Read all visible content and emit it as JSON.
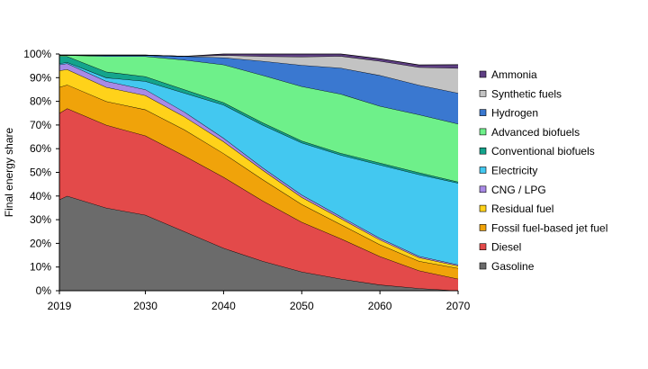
{
  "chart_data": {
    "type": "area",
    "stacked": true,
    "ylabel": "Final energy share",
    "ylim": [
      0,
      100
    ],
    "x": [
      2019,
      2020,
      2025,
      2030,
      2035,
      2040,
      2045,
      2050,
      2055,
      2060,
      2065,
      2070
    ],
    "x_ticks": [
      "2019",
      "2030",
      "2040",
      "2050",
      "2060",
      "2070"
    ],
    "y_ticks": [
      "0%",
      "10%",
      "20%",
      "30%",
      "40%",
      "50%",
      "60%",
      "70%",
      "80%",
      "90%",
      "100%"
    ],
    "grid": false,
    "legend_position": "right",
    "series": [
      {
        "name": "Gasoline",
        "color": "#6b6b6b",
        "values": [
          38.5,
          40,
          35,
          32,
          25,
          18,
          12.5,
          8,
          5,
          2.5,
          1,
          0
        ]
      },
      {
        "name": "Diesel",
        "color": "#e34a4a",
        "values": [
          36.5,
          37,
          35,
          33.5,
          32,
          30,
          25.5,
          21,
          17,
          12,
          7.5,
          5
        ]
      },
      {
        "name": "Fossil fuel-based jet fuel",
        "color": "#f0a30a",
        "values": [
          11,
          10,
          10,
          11,
          11,
          10,
          9,
          7.5,
          6,
          5,
          4,
          4.5
        ]
      },
      {
        "name": "Residual fuel",
        "color": "#ffd21a",
        "values": [
          7,
          6.5,
          6,
          6,
          5.5,
          5,
          4,
          3,
          2.5,
          2,
          1.5,
          1
        ]
      },
      {
        "name": "CNG / LPG",
        "color": "#a98ae6",
        "values": [
          2.5,
          2.5,
          2.5,
          2.5,
          2,
          1.5,
          1,
          1,
          0.8,
          0.7,
          0.6,
          0.5
        ]
      },
      {
        "name": "Electricity",
        "color": "#43c8f0",
        "values": [
          0.5,
          0.5,
          1.5,
          3.5,
          8,
          14,
          18,
          22,
          26,
          31,
          34.5,
          34.5
        ]
      },
      {
        "name": "Conventional biofuels",
        "color": "#14a48c",
        "values": [
          3,
          2.5,
          2.5,
          2,
          1.5,
          1,
          1,
          0.8,
          0.8,
          0.8,
          0.8,
          0.5
        ]
      },
      {
        "name": "Advanced biofuels",
        "color": "#6ef08a",
        "values": [
          0.5,
          0.5,
          6.5,
          8.5,
          12.5,
          16,
          20,
          23,
          25,
          24,
          24.5,
          24.5
        ]
      },
      {
        "name": "Hydrogen",
        "color": "#3a78d0",
        "values": [
          0,
          0,
          0.5,
          0.5,
          1.5,
          3,
          6,
          9,
          11,
          13,
          12.5,
          13
        ]
      },
      {
        "name": "Synthetic fuels",
        "color": "#c3c3c3",
        "values": [
          0,
          0,
          0,
          0,
          0,
          1,
          2,
          3.5,
          5,
          6,
          7.5,
          10.5
        ]
      },
      {
        "name": "Ammonia",
        "color": "#5e3f83",
        "values": [
          0,
          0,
          0,
          0,
          0,
          0.5,
          1,
          1.2,
          0.9,
          1,
          1,
          1.5
        ]
      }
    ]
  }
}
